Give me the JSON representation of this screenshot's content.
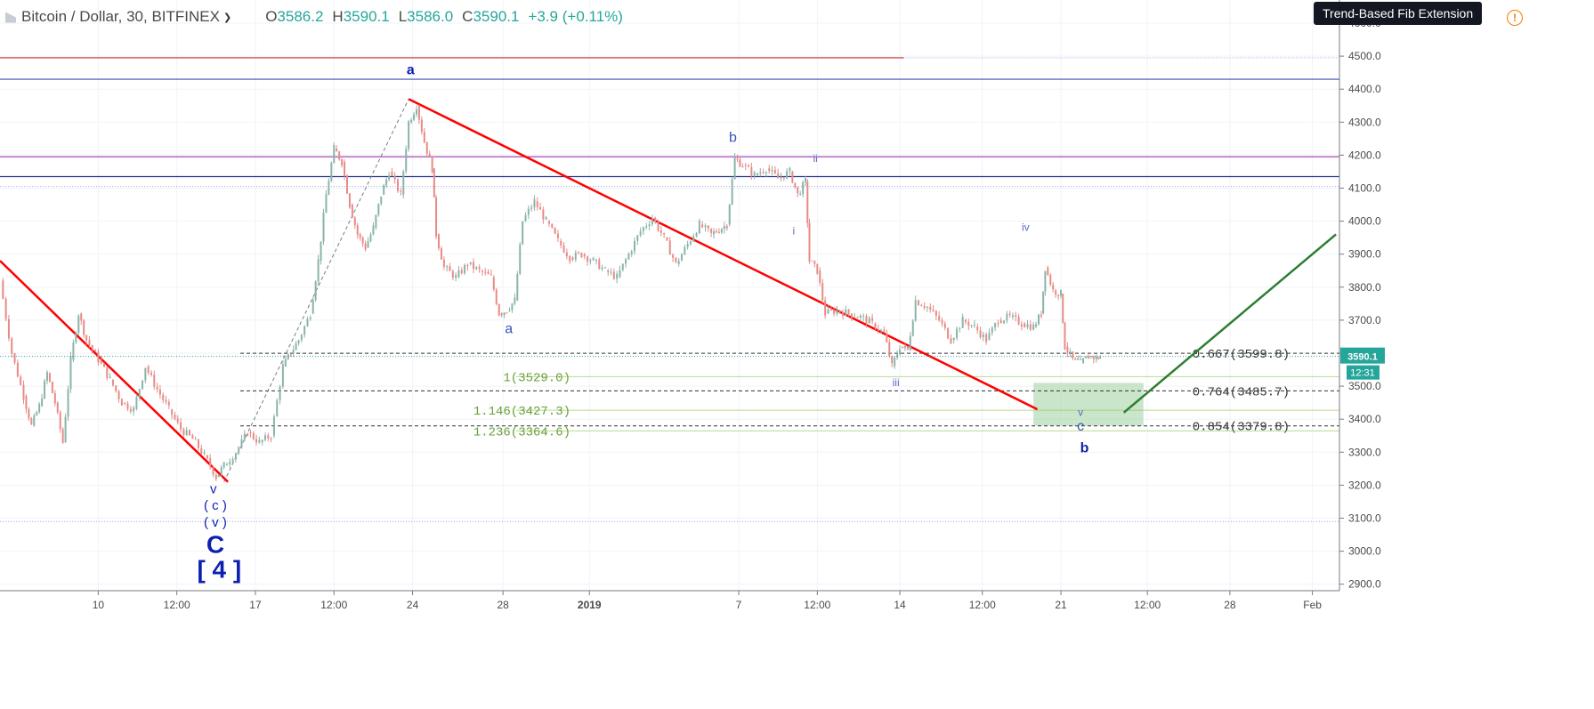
{
  "symbol_bar": {
    "title": "Bitcoin / Dollar, 30, BITFINEX",
    "ohlc": [
      {
        "k": "O",
        "v": "3586.2"
      },
      {
        "k": "H",
        "v": "3590.1"
      },
      {
        "k": "L",
        "v": "3586.0"
      },
      {
        "k": "C",
        "v": "3590.1"
      }
    ],
    "change": "+3.9 (+0.11%)"
  },
  "tooltip": "Trend-Based Fib Extension",
  "price_label": {
    "value": "3590.1",
    "countdown": "12:31",
    "color": "#26a69a"
  },
  "icons": {
    "warning": "warning-circle-icon",
    "symbol": "symbol-flag-icon",
    "caret": "chevron-down-icon"
  },
  "chart_data": {
    "type": "candlestick",
    "symbol": "Bitcoin / Dollar",
    "interval": "30",
    "exchange": "BITFINEX",
    "y_ticks": [
      4600,
      4500,
      4400,
      4300,
      4200,
      4100,
      4000,
      3900,
      3800,
      3700,
      3600,
      3500,
      3400,
      3300,
      3200,
      3100,
      3000,
      2900
    ],
    "y_tick_labels": [
      "4600.0",
      "4500.0",
      "4400.0",
      "4300.0",
      "4200.0",
      "4100.0",
      "4000.0",
      "3900.0",
      "3800.0",
      "3700.0",
      "3600.0",
      "3500.0",
      "3400.0",
      "3300.0",
      "3200.0",
      "3100.0",
      "3000.0",
      "2900.0"
    ],
    "ylim": [
      2870,
      4640
    ],
    "x_ticks": [
      {
        "label": "10",
        "t": 2.5
      },
      {
        "label": "12:00",
        "t": 4.5
      },
      {
        "label": "17",
        "t": 6.5
      },
      {
        "label": "12:00",
        "t": 8.5
      },
      {
        "label": "24",
        "t": 10.5
      },
      {
        "label": "28",
        "t": 12.8
      },
      {
        "label": "2019",
        "t": 15.0,
        "bold": true
      },
      {
        "label": "7",
        "t": 18.8
      },
      {
        "label": "12:00",
        "t": 20.8
      },
      {
        "label": "14",
        "t": 22.9
      },
      {
        "label": "12:00",
        "t": 25.0
      },
      {
        "label": "21",
        "t": 27.0
      },
      {
        "label": "12:00",
        "t": 29.2
      },
      {
        "label": "28",
        "t": 31.3
      },
      {
        "label": "Feb",
        "t": 33.4
      }
    ],
    "xlim": [
      0,
      34
    ],
    "price_path": [
      [
        0.0,
        3820
      ],
      [
        0.3,
        3600
      ],
      [
        0.6,
        3470
      ],
      [
        0.8,
        3380
      ],
      [
        1.0,
        3440
      ],
      [
        1.2,
        3540
      ],
      [
        1.4,
        3450
      ],
      [
        1.6,
        3330
      ],
      [
        1.8,
        3580
      ],
      [
        2.0,
        3720
      ],
      [
        2.2,
        3640
      ],
      [
        2.5,
        3580
      ],
      [
        2.8,
        3520
      ],
      [
        3.1,
        3450
      ],
      [
        3.4,
        3430
      ],
      [
        3.7,
        3560
      ],
      [
        4.0,
        3490
      ],
      [
        4.3,
        3430
      ],
      [
        4.6,
        3370
      ],
      [
        4.9,
        3340
      ],
      [
        5.2,
        3290
      ],
      [
        5.5,
        3225
      ],
      [
        5.7,
        3260
      ],
      [
        6.0,
        3300
      ],
      [
        6.3,
        3360
      ],
      [
        6.6,
        3330
      ],
      [
        6.9,
        3350
      ],
      [
        7.2,
        3560
      ],
      [
        7.4,
        3600
      ],
      [
        7.6,
        3640
      ],
      [
        7.9,
        3720
      ],
      [
        8.1,
        3880
      ],
      [
        8.3,
        4080
      ],
      [
        8.5,
        4220
      ],
      [
        8.7,
        4180
      ],
      [
        8.9,
        4050
      ],
      [
        9.1,
        3960
      ],
      [
        9.3,
        3920
      ],
      [
        9.5,
        3980
      ],
      [
        9.7,
        4080
      ],
      [
        9.9,
        4150
      ],
      [
        10.2,
        4080
      ],
      [
        10.4,
        4300
      ],
      [
        10.6,
        4350
      ],
      [
        10.8,
        4240
      ],
      [
        11.0,
        4160
      ],
      [
        11.1,
        3960
      ],
      [
        11.3,
        3860
      ],
      [
        11.6,
        3830
      ],
      [
        11.9,
        3870
      ],
      [
        12.2,
        3850
      ],
      [
        12.5,
        3830
      ],
      [
        12.7,
        3720
      ],
      [
        12.9,
        3730
      ],
      [
        13.1,
        3760
      ],
      [
        13.3,
        4000
      ],
      [
        13.6,
        4060
      ],
      [
        13.9,
        4000
      ],
      [
        14.2,
        3940
      ],
      [
        14.5,
        3890
      ],
      [
        14.8,
        3900
      ],
      [
        15.1,
        3880
      ],
      [
        15.4,
        3850
      ],
      [
        15.7,
        3830
      ],
      [
        16.0,
        3900
      ],
      [
        16.3,
        3970
      ],
      [
        16.6,
        4010
      ],
      [
        16.9,
        3950
      ],
      [
        17.2,
        3870
      ],
      [
        17.5,
        3930
      ],
      [
        17.8,
        3990
      ],
      [
        18.1,
        3960
      ],
      [
        18.5,
        3990
      ],
      [
        18.7,
        4190
      ],
      [
        18.9,
        4170
      ],
      [
        19.2,
        4140
      ],
      [
        19.5,
        4160
      ],
      [
        19.8,
        4130
      ],
      [
        20.1,
        4150
      ],
      [
        20.3,
        4080
      ],
      [
        20.5,
        4120
      ],
      [
        20.6,
        3880
      ],
      [
        20.8,
        3850
      ],
      [
        21.0,
        3720
      ],
      [
        21.3,
        3730
      ],
      [
        21.6,
        3720
      ],
      [
        21.9,
        3710
      ],
      [
        22.2,
        3690
      ],
      [
        22.5,
        3660
      ],
      [
        22.7,
        3560
      ],
      [
        22.9,
        3620
      ],
      [
        23.1,
        3610
      ],
      [
        23.3,
        3760
      ],
      [
        23.6,
        3740
      ],
      [
        23.9,
        3700
      ],
      [
        24.2,
        3640
      ],
      [
        24.5,
        3700
      ],
      [
        24.8,
        3680
      ],
      [
        25.1,
        3640
      ],
      [
        25.4,
        3700
      ],
      [
        25.7,
        3710
      ],
      [
        26.0,
        3690
      ],
      [
        26.3,
        3680
      ],
      [
        26.5,
        3720
      ],
      [
        26.6,
        3860
      ],
      [
        26.8,
        3790
      ],
      [
        27.0,
        3780
      ],
      [
        27.1,
        3620
      ],
      [
        27.3,
        3580
      ],
      [
        27.5,
        3570
      ],
      [
        27.7,
        3590
      ],
      [
        27.9,
        3586
      ],
      [
        28.0,
        3590.1
      ]
    ],
    "last_price": 3590.1,
    "trend_lines": [
      {
        "name": "downtrend-1",
        "color": "#ff0000",
        "points": [
          [
            0.0,
            3880
          ],
          [
            5.8,
            3210
          ]
        ]
      },
      {
        "name": "downtrend-2",
        "color": "#ff0000",
        "points": [
          [
            10.4,
            4370
          ],
          [
            26.4,
            3430
          ]
        ]
      },
      {
        "name": "projection",
        "color": "#2e7d32",
        "points": [
          [
            28.6,
            3420
          ],
          [
            34.0,
            3960
          ]
        ]
      }
    ],
    "fib_base_line": {
      "color": "#787b86",
      "points": [
        [
          5.7,
          3210
        ],
        [
          10.4,
          4370
        ]
      ]
    },
    "horizontal_lines": [
      {
        "price": 4495,
        "color": "#c62828",
        "t_end": 23.0
      },
      {
        "price": 4495,
        "color": "#9fa8da",
        "t_start": 23.0,
        "dotted": true
      },
      {
        "price": 4430,
        "color": "#3f51b5"
      },
      {
        "price": 4195,
        "color": "#ab47bc"
      },
      {
        "price": 4135,
        "color": "#283593"
      },
      {
        "price": 4105,
        "color": "#9fa8da",
        "dotted": true
      },
      {
        "price": 3090,
        "color": "#9fa8da",
        "dotted": true
      }
    ],
    "fib_retracement": [
      {
        "level": "0.667",
        "price": 3599.8,
        "label": "0.667(3599.8)"
      },
      {
        "level": "0.764",
        "price": 3485.7,
        "label": "0.764(3485.7)"
      },
      {
        "level": "0.854",
        "price": 3379.8,
        "label": "0.854(3379.8)"
      }
    ],
    "fib_extension": [
      {
        "level": "1",
        "price": 3529.0,
        "label": "1(3529.0)"
      },
      {
        "level": "1.146",
        "price": 3427.3,
        "label": "1.146(3427.3)"
      },
      {
        "level": "1.236",
        "price": 3364.6,
        "label": "1.236(3364.6)"
      }
    ],
    "target_zone": {
      "t_start": 26.3,
      "t_end": 29.1,
      "price_top": 3510,
      "price_bottom": 3380,
      "color": "#a5d6a7"
    },
    "wave_labels": [
      {
        "text": "a",
        "t": 10.45,
        "price": 4445,
        "color": "#0d1fb0",
        "bold": true,
        "size": 16
      },
      {
        "text": "a",
        "t": 12.95,
        "price": 3660,
        "color": "#3f51b5",
        "size": 16
      },
      {
        "text": "b",
        "t": 18.65,
        "price": 4240,
        "color": "#3f51b5",
        "size": 16
      },
      {
        "text": "ii",
        "t": 20.75,
        "price": 4180,
        "color": "#5c6bc0",
        "size": 12
      },
      {
        "text": "i",
        "t": 20.2,
        "price": 3960,
        "color": "#5c6bc0",
        "size": 12
      },
      {
        "text": "iii",
        "t": 22.8,
        "price": 3500,
        "color": "#5c6bc0",
        "size": 12
      },
      {
        "text": "iv",
        "t": 26.1,
        "price": 3970,
        "color": "#5c6bc0",
        "size": 12
      },
      {
        "text": "v",
        "t": 27.5,
        "price": 3410,
        "color": "#5c6bc0",
        "size": 12
      },
      {
        "text": "c",
        "t": 27.5,
        "price": 3365,
        "color": "#3f51b5",
        "size": 16
      },
      {
        "text": "b",
        "t": 27.6,
        "price": 3300,
        "color": "#0d1fb0",
        "bold": true,
        "size": 16
      },
      {
        "text": "v",
        "t": 5.43,
        "price": 3175,
        "color": "#0d1fb0",
        "size": 15
      },
      {
        "text": "( c )",
        "t": 5.48,
        "price": 3125,
        "color": "#0d1fb0",
        "size": 15
      },
      {
        "text": "( v )",
        "t": 5.48,
        "price": 3075,
        "color": "#0d1fb0",
        "size": 15
      },
      {
        "text": "C",
        "t": 5.48,
        "price": 2995,
        "color": "#0d1fb0",
        "bold": true,
        "size": 28
      },
      {
        "text": "[ 4 ]",
        "t": 5.58,
        "price": 2920,
        "color": "#0d1fb0",
        "bold": true,
        "size": 28
      }
    ]
  }
}
